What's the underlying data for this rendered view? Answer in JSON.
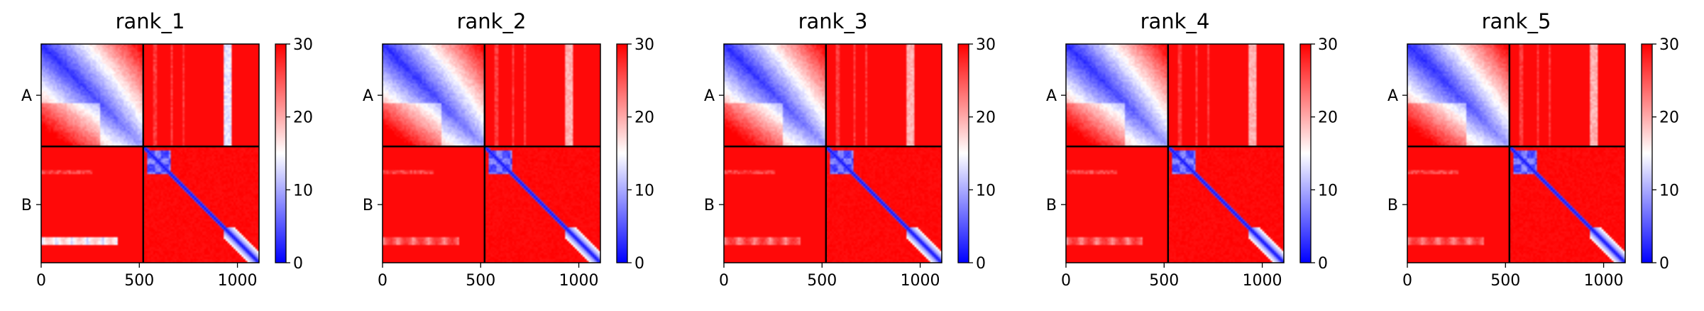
{
  "chart_data": [
    {
      "type": "heatmap",
      "title": "rank_1",
      "chains": [
        {
          "label": "A",
          "start": 0,
          "end": 520
        },
        {
          "label": "B",
          "start": 520,
          "end": 1110
        }
      ],
      "xticks": [
        0,
        500,
        1000
      ],
      "xlim": [
        0,
        1110
      ],
      "colorbar": {
        "ticks": [
          0,
          10,
          20,
          30
        ],
        "range": [
          0,
          30
        ],
        "colors": [
          "#0000ff",
          "#ffffff",
          "#ff0000"
        ]
      },
      "patterns": {
        "A_A": "diagonal 0, rising to ~20-25 far from diagonal",
        "A_B": "mostly 30, pale band near x~950",
        "B_B": "blue blocks near x~580-650 and x~950-1100 along diagonal",
        "B_A": "mostly 30, pale streak near y~1000"
      }
    },
    {
      "type": "heatmap",
      "title": "rank_2",
      "chains": [
        {
          "label": "A",
          "start": 0,
          "end": 520
        },
        {
          "label": "B",
          "start": 520,
          "end": 1110
        }
      ],
      "xticks": [
        0,
        500,
        1000
      ],
      "xlim": [
        0,
        1110
      ],
      "colorbar": {
        "ticks": [
          0,
          10,
          20,
          30
        ],
        "range": [
          0,
          30
        ],
        "colors": [
          "#0000ff",
          "#ffffff",
          "#ff0000"
        ]
      }
    },
    {
      "type": "heatmap",
      "title": "rank_3",
      "chains": [
        {
          "label": "A",
          "start": 0,
          "end": 520
        },
        {
          "label": "B",
          "start": 520,
          "end": 1110
        }
      ],
      "xticks": [
        0,
        500,
        1000
      ],
      "xlim": [
        0,
        1110
      ],
      "colorbar": {
        "ticks": [
          0,
          10,
          20,
          30
        ],
        "range": [
          0,
          30
        ],
        "colors": [
          "#0000ff",
          "#ffffff",
          "#ff0000"
        ]
      }
    },
    {
      "type": "heatmap",
      "title": "rank_4",
      "chains": [
        {
          "label": "A",
          "start": 0,
          "end": 520
        },
        {
          "label": "B",
          "start": 520,
          "end": 1110
        }
      ],
      "xticks": [
        0,
        500,
        1000
      ],
      "xlim": [
        0,
        1110
      ],
      "colorbar": {
        "ticks": [
          0,
          10,
          20,
          30
        ],
        "range": [
          0,
          30
        ],
        "colors": [
          "#0000ff",
          "#ffffff",
          "#ff0000"
        ]
      }
    },
    {
      "type": "heatmap",
      "title": "rank_5",
      "chains": [
        {
          "label": "A",
          "start": 0,
          "end": 520
        },
        {
          "label": "B",
          "start": 520,
          "end": 1110
        }
      ],
      "xticks": [
        0,
        500,
        1000
      ],
      "xlim": [
        0,
        1110
      ],
      "colorbar": {
        "ticks": [
          0,
          10,
          20,
          30
        ],
        "range": [
          0,
          30
        ],
        "colors": [
          "#0000ff",
          "#ffffff",
          "#ff0000"
        ]
      }
    }
  ]
}
